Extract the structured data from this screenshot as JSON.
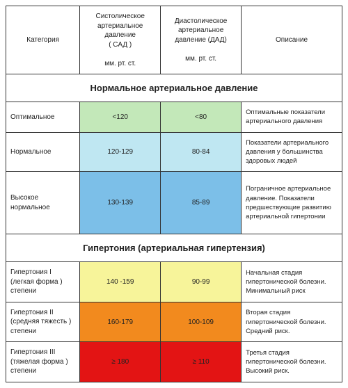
{
  "header": {
    "category": "Категория",
    "sbp_line1": "Систолическое",
    "sbp_line2": "артериальное давление",
    "sbp_line3": "( САД )",
    "sbp_unit": "мм. рт. ст.",
    "dbp_line1": "Диастолическое",
    "dbp_line2": "артериальное",
    "dbp_line3": "давление (ДАД)",
    "dbp_unit": "мм. рт. ст.",
    "desc": "Описание"
  },
  "sections": {
    "normal": "Нормальное артериальное давление",
    "hyper": "Гипертония (артериальная гипертензия)"
  },
  "rows": {
    "opt": {
      "cat": "Оптимальное",
      "sbp": "<120",
      "dbp": "<80",
      "desc": "Оптимальные показатели артериального давления",
      "color": "#c3e8b9"
    },
    "norm": {
      "cat": "Нормальное",
      "sbp": "120-129",
      "dbp": "80-84",
      "desc": "Показатели артериального давления у большинства здоровых людей",
      "color": "#bfe7f2"
    },
    "high_norm": {
      "cat": "Высокое нормальное",
      "sbp": "130-139",
      "dbp": "85-89",
      "desc": "Пограничное артериальное давление. Показатели предшествующие развитию артериальной гипертонии",
      "color": "#7cbfe8"
    },
    "h1": {
      "cat": "Гипертония I (легкая форма ) степени",
      "sbp": "140 -159",
      "dbp": "90-99",
      "desc": "Начальная стадия гипертонической болезни. Минимальный риск",
      "color": "#f7f49a"
    },
    "h2": {
      "cat": "Гипертония II (средняя тяжесть ) степени",
      "sbp": "160-179",
      "dbp": "100-109",
      "desc": "Вторая стадия гипертонической болезни. Средний риск.",
      "color": "#f28a1e"
    },
    "h3": {
      "cat": "Гипертония III (тяжелая форма ) степени",
      "sbp": "≥ 180",
      "dbp": "≥ 110",
      "desc": "Третья стадия гипертонической болезни. Высокий риск.",
      "color": "#e31414"
    }
  },
  "cols": {
    "c1": "22%",
    "c2": "24%",
    "c3": "24%",
    "c4": "30%"
  },
  "styling": {
    "border_color": "#333333",
    "bg": "#ffffff",
    "header_fontsize": 10,
    "cell_fontsize": 10,
    "section_fontsize": 13
  }
}
